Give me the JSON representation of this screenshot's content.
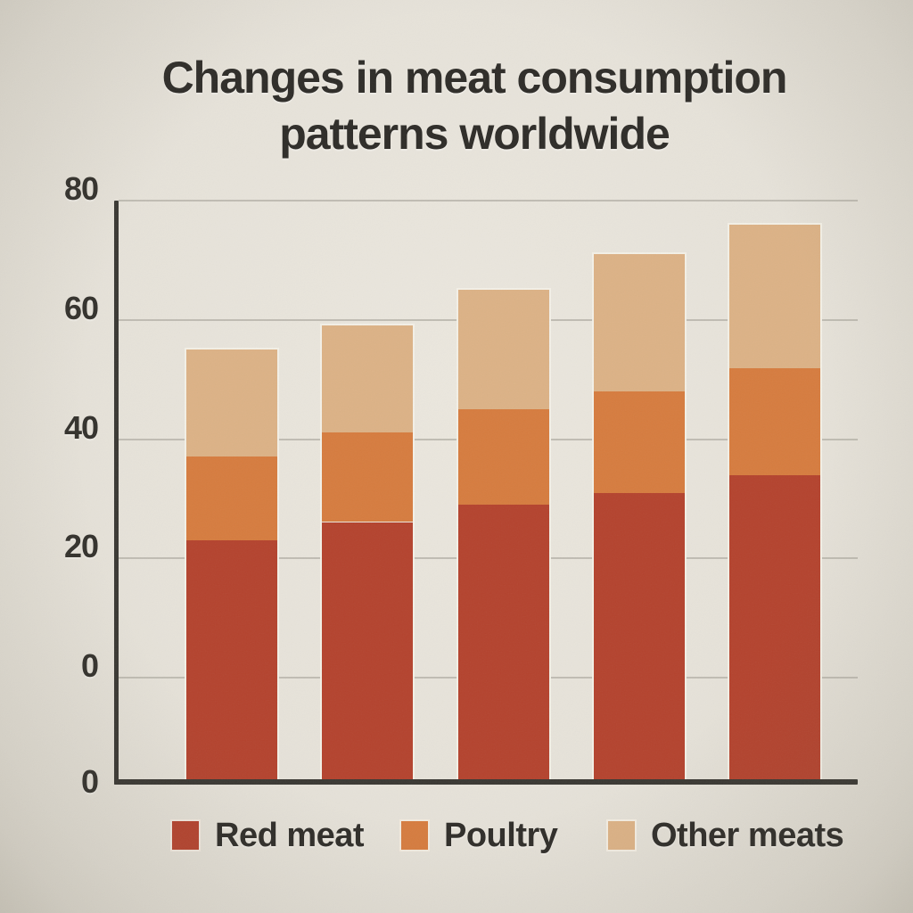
{
  "title": {
    "line1": "Changes in meat consumption",
    "line2": "patterns worldwide"
  },
  "axis": {
    "ytick_labels": [
      "80",
      "60",
      "40",
      "20",
      "0"
    ],
    "baseline_label": "0"
  },
  "legend": {
    "items": [
      "Red meat",
      "Poultry",
      "Other meats"
    ]
  },
  "colors": {
    "background": "#e6e2d9",
    "text": "#2e2c28",
    "gridline": "#b9b5ab",
    "axis": "#3a3833",
    "bar_outline": "#f3f0e7",
    "red_meat": "#b4432e",
    "poultry": "#d67c3f",
    "other_meats": "#dcb286"
  },
  "chart_data": {
    "type": "bar",
    "subtype": "stacked",
    "title": "Changes in meat consumption patterns worldwide",
    "categories": [
      "",
      "",
      "",
      "",
      ""
    ],
    "series": [
      {
        "name": "Red meat",
        "color": "#b4432e",
        "values": [
          23,
          26,
          29,
          31,
          34
        ]
      },
      {
        "name": "Poultry",
        "color": "#d67c3f",
        "values": [
          14,
          15,
          16,
          17,
          18
        ]
      },
      {
        "name": "Other meats",
        "color": "#dcb286",
        "values": [
          18,
          18,
          20,
          23,
          24
        ]
      }
    ],
    "stack_totals": [
      55,
      59,
      65,
      71,
      76
    ],
    "xlabel": "",
    "ylabel": "",
    "ylim": [
      0,
      80
    ],
    "yticks": [
      0,
      20,
      40,
      60,
      80
    ],
    "grid": true,
    "x_tick_labels": "none",
    "legend_position": "bottom",
    "note": "Bars are anchored to the x-axis baseline drawn below the 0 gridline; the y-axis shows a 0 label at both the 0 gridline and the baseline."
  }
}
